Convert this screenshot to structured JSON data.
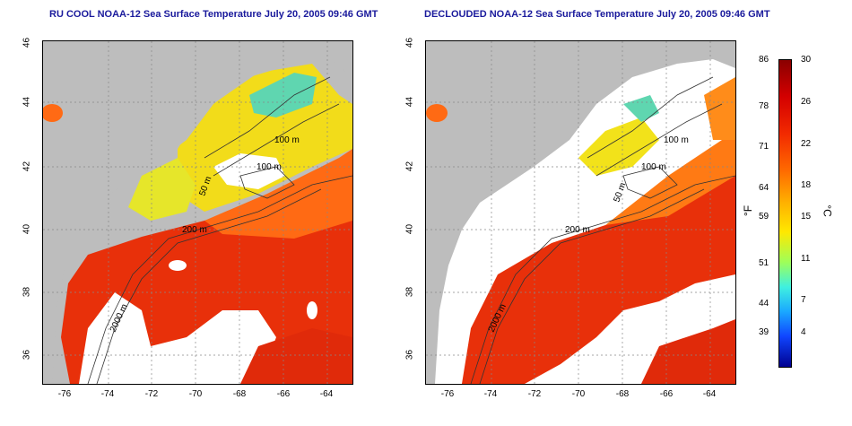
{
  "titles": {
    "left": "RU COOL NOAA-12 Sea Surface Temperature July 20, 2005 09:46 GMT",
    "right": "DECLOUDED NOAA-12 Sea Surface Temperature July 20, 2005 09:46 GMT"
  },
  "axes": {
    "x_ticks": [
      "-76",
      "-74",
      "-72",
      "-70",
      "-68",
      "-66",
      "-64"
    ],
    "y_ticks": [
      "46",
      "44",
      "42",
      "40",
      "38",
      "36"
    ]
  },
  "isobaths": {
    "left": [
      "100 m",
      "100 m",
      "50 m",
      "200 m",
      "2000 m"
    ],
    "right": [
      "100 m",
      "100 m",
      "50 m",
      "200 m",
      "2000 m"
    ]
  },
  "colorbar": {
    "fahrenheit": [
      "86",
      "78",
      "71",
      "64",
      "59",
      "51",
      "44",
      "39"
    ],
    "celsius": [
      "30",
      "26",
      "22",
      "18",
      "15",
      "11",
      "7",
      "4"
    ],
    "unit_f": "°F",
    "unit_c": "°C",
    "colors": [
      "#8a0000",
      "#d40000",
      "#f22a00",
      "#ff6a00",
      "#ffae00",
      "#ffe800",
      "#9dff5a",
      "#3ff0e0",
      "#1aa8ff",
      "#1046ff",
      "#000090"
    ]
  },
  "map_colors": {
    "land": "#bdbdbd",
    "cloud": "#ffffff",
    "warm": "#e8300a",
    "mid": "#ff8c1a",
    "cool": "#f2e21a",
    "cold": "#3fc8c8"
  }
}
